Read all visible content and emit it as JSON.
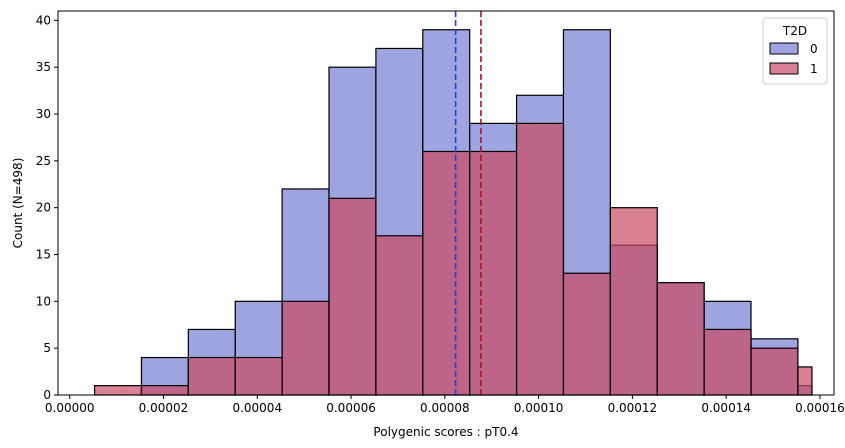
{
  "chart_data": {
    "type": "histogram",
    "xlabel": "Polygenic scores : pT0.4",
    "ylabel": "Count (N=498)",
    "xlim": [
      -2.5e-06,
      0.000163
    ],
    "ylim": [
      0,
      41
    ],
    "x_ticks": [
      0,
      2e-05,
      4e-05,
      6e-05,
      8e-05,
      0.0001,
      0.00012,
      0.00014,
      0.00016
    ],
    "x_tick_labels": [
      "0.00000",
      "0.00002",
      "0.00004",
      "0.00006",
      "0.00008",
      "0.00010",
      "0.00012",
      "0.00014",
      "0.00016"
    ],
    "y_ticks": [
      0,
      5,
      10,
      15,
      20,
      25,
      30,
      35,
      40
    ],
    "y_tick_labels": [
      "0",
      "5",
      "10",
      "15",
      "20",
      "25",
      "30",
      "35",
      "40"
    ],
    "bin_edges": [
      5.3e-06,
      1.53e-05,
      2.53e-05,
      3.53e-05,
      4.53e-05,
      5.53e-05,
      6.53e-05,
      7.53e-05,
      8.53e-05,
      9.53e-05,
      0.0001053,
      0.0001153,
      0.0001253,
      0.0001353,
      0.0001453,
      0.0001553,
      0.0001583
    ],
    "bins": [
      {
        "x0": 5.3e-06,
        "x1": 1.53e-05
      },
      {
        "x0": 1.53e-05,
        "x1": 2.53e-05
      },
      {
        "x0": 2.53e-05,
        "x1": 3.53e-05
      },
      {
        "x0": 3.53e-05,
        "x1": 4.53e-05
      },
      {
        "x0": 4.53e-05,
        "x1": 5.53e-05
      },
      {
        "x0": 5.53e-05,
        "x1": 6.53e-05
      },
      {
        "x0": 6.53e-05,
        "x1": 7.53e-05
      },
      {
        "x0": 7.53e-05,
        "x1": 8.53e-05
      },
      {
        "x0": 8.53e-05,
        "x1": 9.53e-05
      },
      {
        "x0": 9.53e-05,
        "x1": 0.0001053
      },
      {
        "x0": 0.0001053,
        "x1": 0.0001153
      },
      {
        "x0": 0.0001153,
        "x1": 0.0001253
      },
      {
        "x0": 0.0001253,
        "x1": 0.0001353
      },
      {
        "x0": 0.0001353,
        "x1": 0.0001453
      },
      {
        "x0": 0.0001453,
        "x1": 0.0001553
      },
      {
        "x0": 0.0001553,
        "x1": 0.0001583
      }
    ],
    "series": [
      {
        "name": "0",
        "color": "#7c86d6",
        "values": [
          0,
          4,
          7,
          10,
          22,
          35,
          37,
          39,
          29,
          32,
          39,
          16,
          12,
          10,
          6,
          1
        ]
      },
      {
        "name": "1",
        "color": "#c94a64",
        "values": [
          1,
          1,
          4,
          4,
          10,
          21,
          17,
          26,
          26,
          29,
          13,
          20,
          12,
          7,
          5,
          3
        ]
      }
    ],
    "mean_lines": [
      {
        "series": "0",
        "x": 8.23e-05,
        "color": "#2a3ed0"
      },
      {
        "series": "1",
        "x": 8.77e-05,
        "color": "#b0102a"
      }
    ],
    "legend": {
      "title": "T2D",
      "position": "top-right",
      "labels": [
        "0",
        "1"
      ]
    },
    "overlap_color": "#8a69ac"
  }
}
